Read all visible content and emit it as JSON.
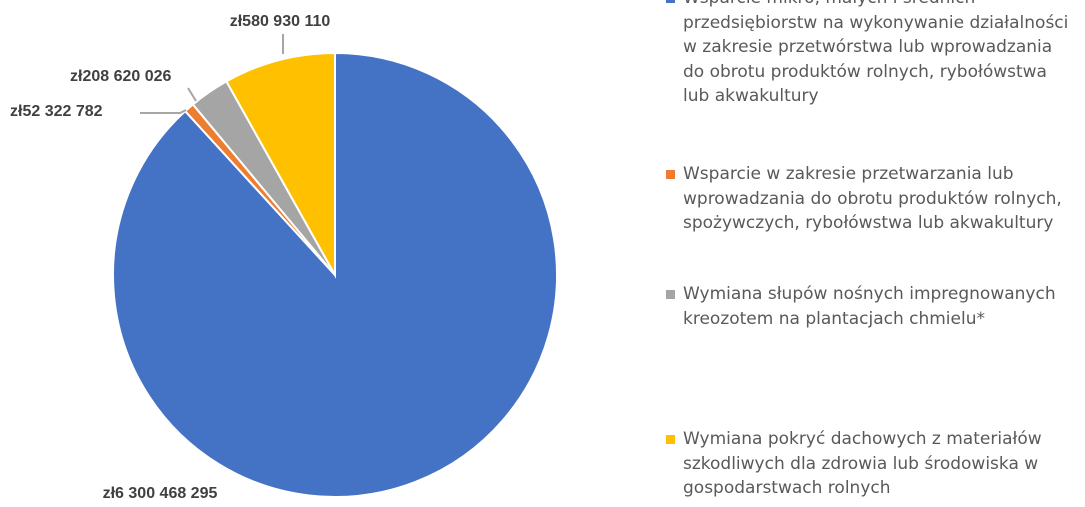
{
  "chart_data": {
    "type": "pie",
    "categories": [
      "Wsparcie mikro, małych i średnich przedsiębiorstw na wykonywanie działalności w zakresie przetwórstwa lub wprowadzania do obrotu produktów rolnych, rybołówstwa lub akwakultury",
      "Wsparcie w zakresie przetwarzania lub wprowadzania do obrotu produktów rolnych, spożywczych, rybołówstwa lub akwakultury",
      "Wymiana słupów nośnych impregnowanych kreozotem na plantacjach chmielu*",
      "Wymiana pokryć dachowych z materiałów szkodliwych dla zdrowia lub środowiska w gospodarstwach rolnych"
    ],
    "values": [
      6300468295,
      52322782,
      208620026,
      580930110
    ],
    "value_labels": [
      "zł6 300 468 295",
      "zł52 322 782",
      "zł208 620 026",
      "zł580 930 110"
    ],
    "colors": [
      "#4472c4",
      "#ed7d31",
      "#a5a5a5",
      "#ffc000"
    ],
    "legend": "right"
  }
}
